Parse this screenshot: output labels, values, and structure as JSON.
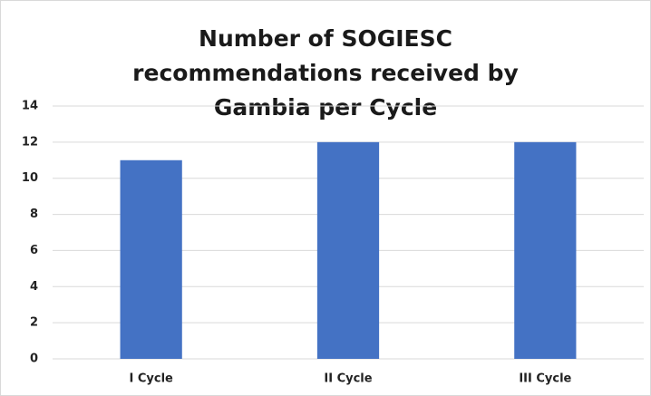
{
  "chart_data": {
    "type": "bar",
    "title": "Number of SOGIESC recommendations received by Gambia per Cycle",
    "categories": [
      "I Cycle",
      "II Cycle",
      "III Cycle"
    ],
    "values": [
      11,
      12,
      12
    ],
    "color": "#4472c4",
    "ylim": [
      0,
      14
    ],
    "yticks": [
      0,
      2,
      4,
      6,
      8,
      10,
      12,
      14
    ],
    "grid": true
  }
}
